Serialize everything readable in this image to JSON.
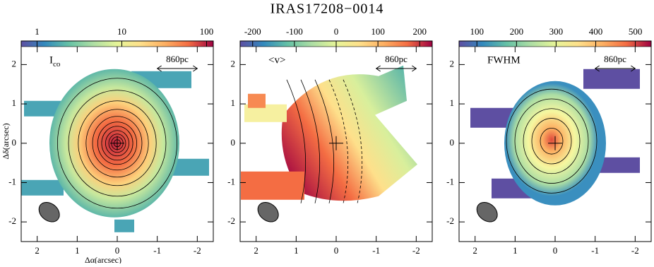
{
  "chart_data": [
    {
      "type": "map",
      "title": "IRAS17208−0014",
      "label": "I",
      "label_subscript": "co",
      "scale_bar": "860pc",
      "xlabel": "Δα(arcsec)",
      "ylabel": "Δδ(arcsec)",
      "xlim": [
        2.4,
        -2.4
      ],
      "xticks": [
        2,
        1,
        0,
        -1,
        -2
      ],
      "ylim": [
        -2.5,
        2.6
      ],
      "yticks": [
        -2,
        -1,
        0,
        1,
        2
      ],
      "clim": [
        0.65,
        120
      ],
      "cticks": [
        1,
        10,
        100
      ],
      "clog": true
    },
    {
      "type": "map",
      "label": "<v>",
      "scale_bar": "860pc",
      "xlim": [
        2.4,
        -2.4
      ],
      "xticks": [
        2,
        1,
        0,
        -1,
        -2
      ],
      "ylim": [
        -2.5,
        2.6
      ],
      "yticks": [
        -2,
        -1,
        0,
        1,
        2
      ],
      "clim": [
        -230,
        230
      ],
      "cticks": [
        -200,
        -100,
        0,
        100,
        200
      ],
      "clog": false
    },
    {
      "type": "map",
      "label": "FWHM",
      "scale_bar": "860pc",
      "xlim": [
        2.4,
        -2.4
      ],
      "xticks": [
        2,
        1,
        0,
        -1,
        -2
      ],
      "ylim": [
        -2.5,
        2.6
      ],
      "yticks": [
        -2,
        -1,
        0,
        1,
        2
      ],
      "clim": [
        55,
        540
      ],
      "cticks": [
        100,
        200,
        300,
        400,
        500
      ],
      "clog": false
    }
  ]
}
